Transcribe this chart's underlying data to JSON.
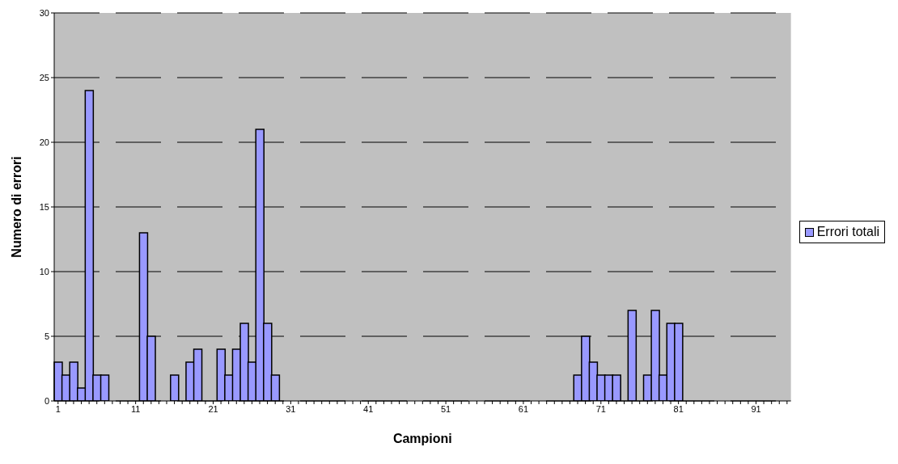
{
  "chart_data": {
    "type": "bar",
    "xlabel": "Campioni",
    "ylabel": "Numero di errori",
    "categories": [
      "1",
      null,
      null,
      null,
      null,
      null,
      null,
      null,
      null,
      null,
      "11",
      null,
      null,
      null,
      null,
      null,
      null,
      null,
      null,
      null,
      "21",
      null,
      null,
      null,
      null,
      null,
      null,
      null,
      null,
      null,
      "31",
      null,
      null,
      null,
      null,
      null,
      null,
      null,
      null,
      null,
      "41",
      null,
      null,
      null,
      null,
      null,
      null,
      null,
      null,
      null,
      "51",
      null,
      null,
      null,
      null,
      null,
      null,
      null,
      null,
      null,
      "61",
      null,
      null,
      null,
      null,
      null,
      null,
      null,
      null,
      null,
      "71",
      null,
      null,
      null,
      null,
      null,
      null,
      null,
      null,
      null,
      "81",
      null,
      null,
      null,
      null,
      null,
      null,
      null,
      null,
      null,
      "91",
      null,
      null,
      null,
      null
    ],
    "series": [
      {
        "name": "Errori totali",
        "color": "#9999ff",
        "values": [
          3,
          2,
          3,
          1,
          24,
          2,
          2,
          0,
          0,
          0,
          0,
          13,
          5,
          0,
          0,
          2,
          0,
          3,
          4,
          0,
          0,
          4,
          2,
          4,
          6,
          3,
          21,
          6,
          2,
          0,
          0,
          0,
          0,
          0,
          0,
          0,
          0,
          0,
          0,
          0,
          0,
          0,
          0,
          0,
          0,
          0,
          0,
          0,
          0,
          0,
          0,
          0,
          0,
          0,
          0,
          0,
          0,
          0,
          0,
          0,
          0,
          0,
          0,
          0,
          0,
          0,
          0,
          2,
          5,
          3,
          2,
          2,
          2,
          0,
          7,
          0,
          2,
          7,
          2,
          6,
          6,
          0,
          0,
          0,
          0,
          0,
          0,
          0,
          0,
          0,
          0,
          0,
          0,
          0,
          0
        ]
      }
    ],
    "ylim": [
      0,
      30
    ],
    "yticks": [
      0,
      5,
      10,
      15,
      20,
      25,
      30
    ],
    "grid": "y",
    "legend": "right"
  }
}
